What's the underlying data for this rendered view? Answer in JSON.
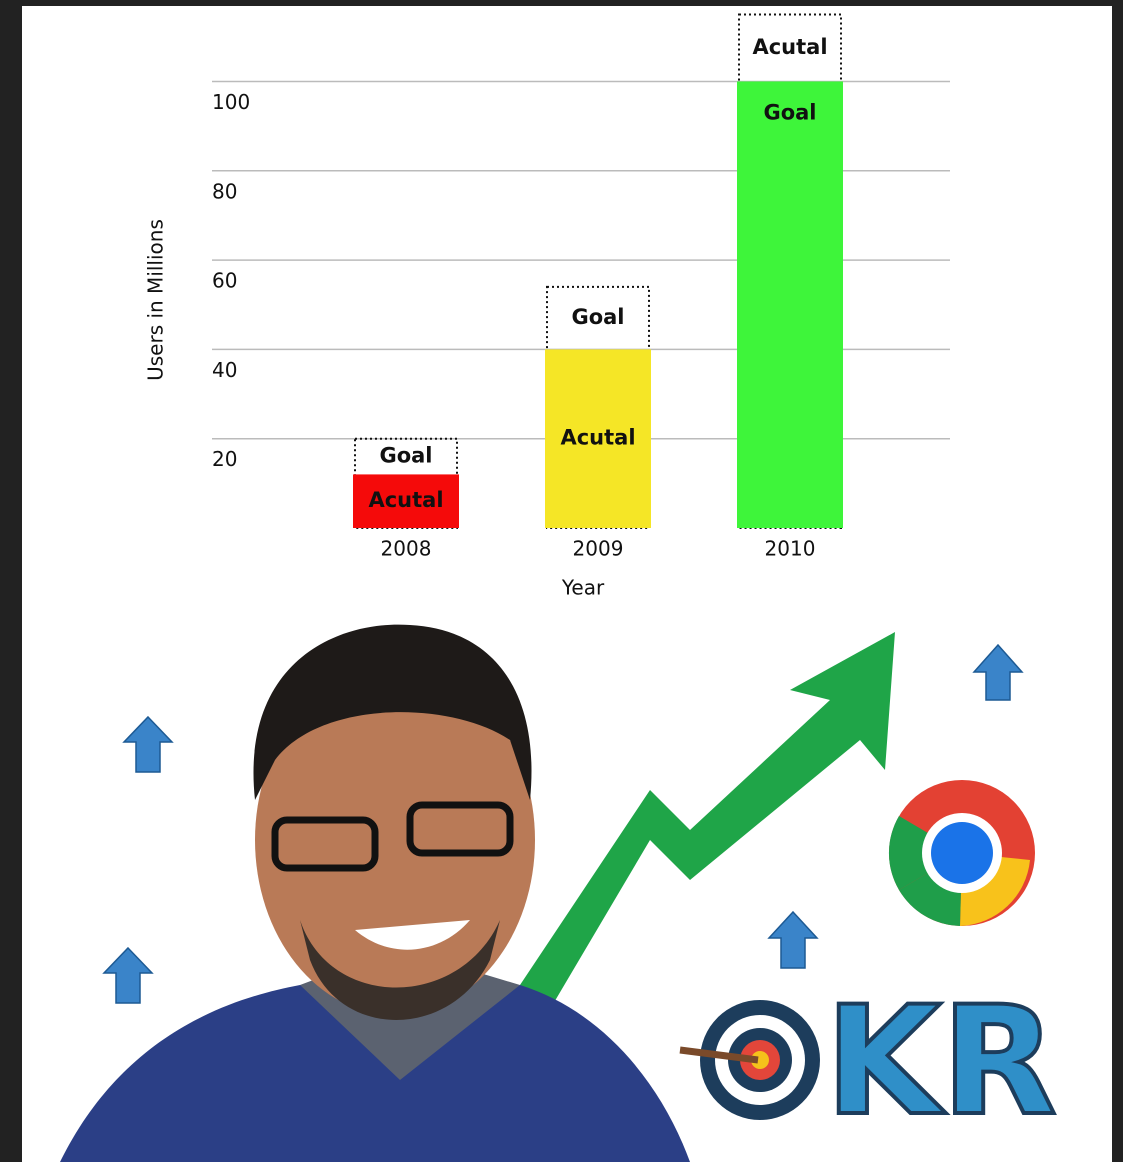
{
  "chart_data": {
    "type": "bar",
    "y_label": "Users in Millions",
    "x_label": "Year",
    "categories": [
      "2008",
      "2009",
      "2010"
    ],
    "series": [
      {
        "colors": [
          "#f50a0a",
          "#f5e626",
          "#3ef53a"
        ],
        "values": [
          12,
          40,
          100
        ],
        "labels": [
          "Acutal",
          "Acutal",
          "Goal"
        ]
      },
      {
        "style": "dashed",
        "values": [
          20,
          54,
          115
        ],
        "labels": [
          "Goal",
          "Goal",
          "Acutal"
        ]
      }
    ],
    "ylim": [
      0,
      116
    ],
    "yticks": [
      20,
      40,
      60,
      80,
      100
    ],
    "grid": true
  },
  "badge_text": "KR"
}
